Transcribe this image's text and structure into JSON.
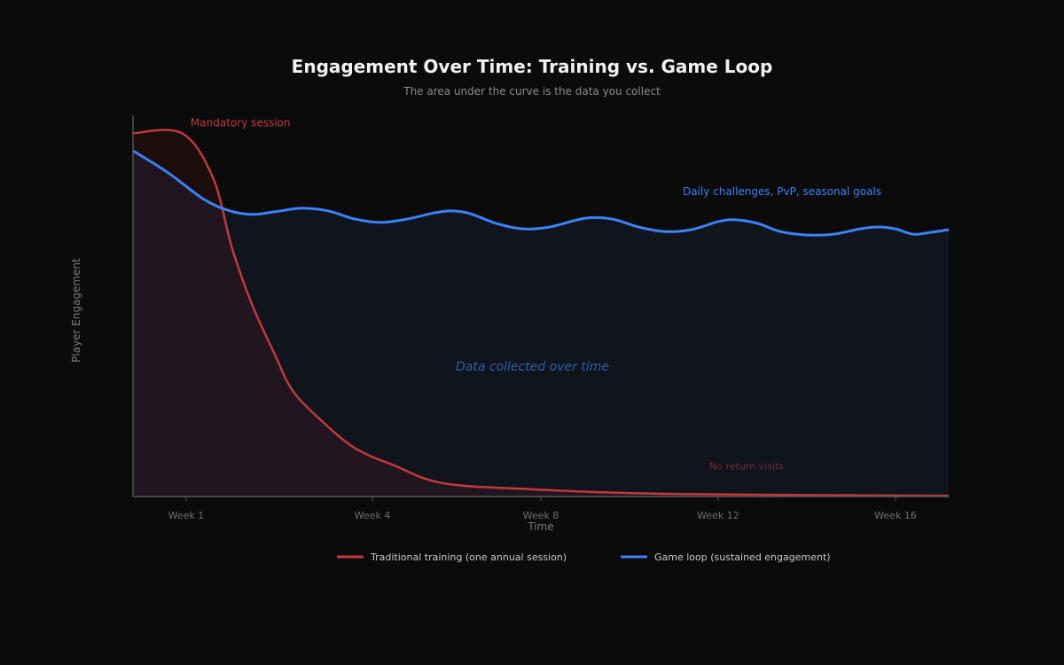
{
  "chart_data": {
    "type": "area",
    "title": "Engagement Over Time: Training vs. Game Loop",
    "subtitle": "The area under the curve is the data you collect",
    "xlabel": "Time",
    "ylabel": "Player Engagement",
    "x_ticks": [
      {
        "value": 1,
        "label": "Week 1"
      },
      {
        "value": 4,
        "label": "Week 4"
      },
      {
        "value": 8,
        "label": "Week 8"
      },
      {
        "value": 12,
        "label": "Week 12"
      },
      {
        "value": 16,
        "label": "Week 16"
      }
    ],
    "xlim": [
      0.14,
      17.2
    ],
    "ylim": [
      0,
      100
    ],
    "grid": false,
    "legend_position": "bottom",
    "series": [
      {
        "name": "Traditional training (one annual session)",
        "color": "#c0393b",
        "x": [
          0.14,
          0.93,
          1.43,
          1.74,
          2.07,
          2.43,
          2.71,
          3.14,
          3.71,
          4.53,
          5.68,
          7.79,
          10.8,
          17.2
        ],
        "y": [
          95.3,
          95.3,
          83.7,
          65.1,
          50,
          37.2,
          27.9,
          20.5,
          12.8,
          8.1,
          3.5,
          1.9,
          0.7,
          0.2
        ]
      },
      {
        "name": "Game loop (sustained engagement)",
        "color": "#3b82f6",
        "x": [
          0.14,
          0.71,
          1.29,
          1.71,
          2.07,
          2.43,
          2.86,
          3.29,
          3.71,
          4.21,
          4.84,
          5.47,
          5.89,
          6.32,
          6.95,
          7.58,
          8.2,
          9.0,
          9.6,
          10.2,
          10.8,
          11.4,
          12.0,
          12.4,
          12.9,
          13.4,
          14.0,
          14.6,
          15.2,
          15.6,
          16.0,
          16.4,
          16.8,
          17.2
        ],
        "y": [
          90.7,
          84.9,
          77.9,
          74.9,
          74.0,
          74.7,
          75.6,
          74.9,
          72.8,
          71.9,
          72.8,
          74.4,
          74.9,
          74.2,
          71.6,
          70.2,
          70.7,
          73.0,
          72.8,
          70.7,
          69.5,
          70.0,
          72.1,
          72.6,
          71.6,
          69.5,
          68.6,
          68.8,
          70.2,
          70.7,
          70.2,
          68.8,
          69.3,
          70.0
        ]
      }
    ],
    "annotations": [
      {
        "text": "Mandatory session",
        "x": 1.07,
        "y": 98,
        "color": "#c0393b"
      },
      {
        "text": "Daily challenges, PvP, seasonal goals",
        "x": 11.2,
        "y": 80,
        "color": "#3b82f6"
      },
      {
        "text": "Data collected over time",
        "x": 7.8,
        "y": 34,
        "color": "#2f5fa8"
      },
      {
        "text": "No return visits",
        "x": 11.8,
        "y": 8,
        "color": "#7a2a33"
      }
    ]
  }
}
